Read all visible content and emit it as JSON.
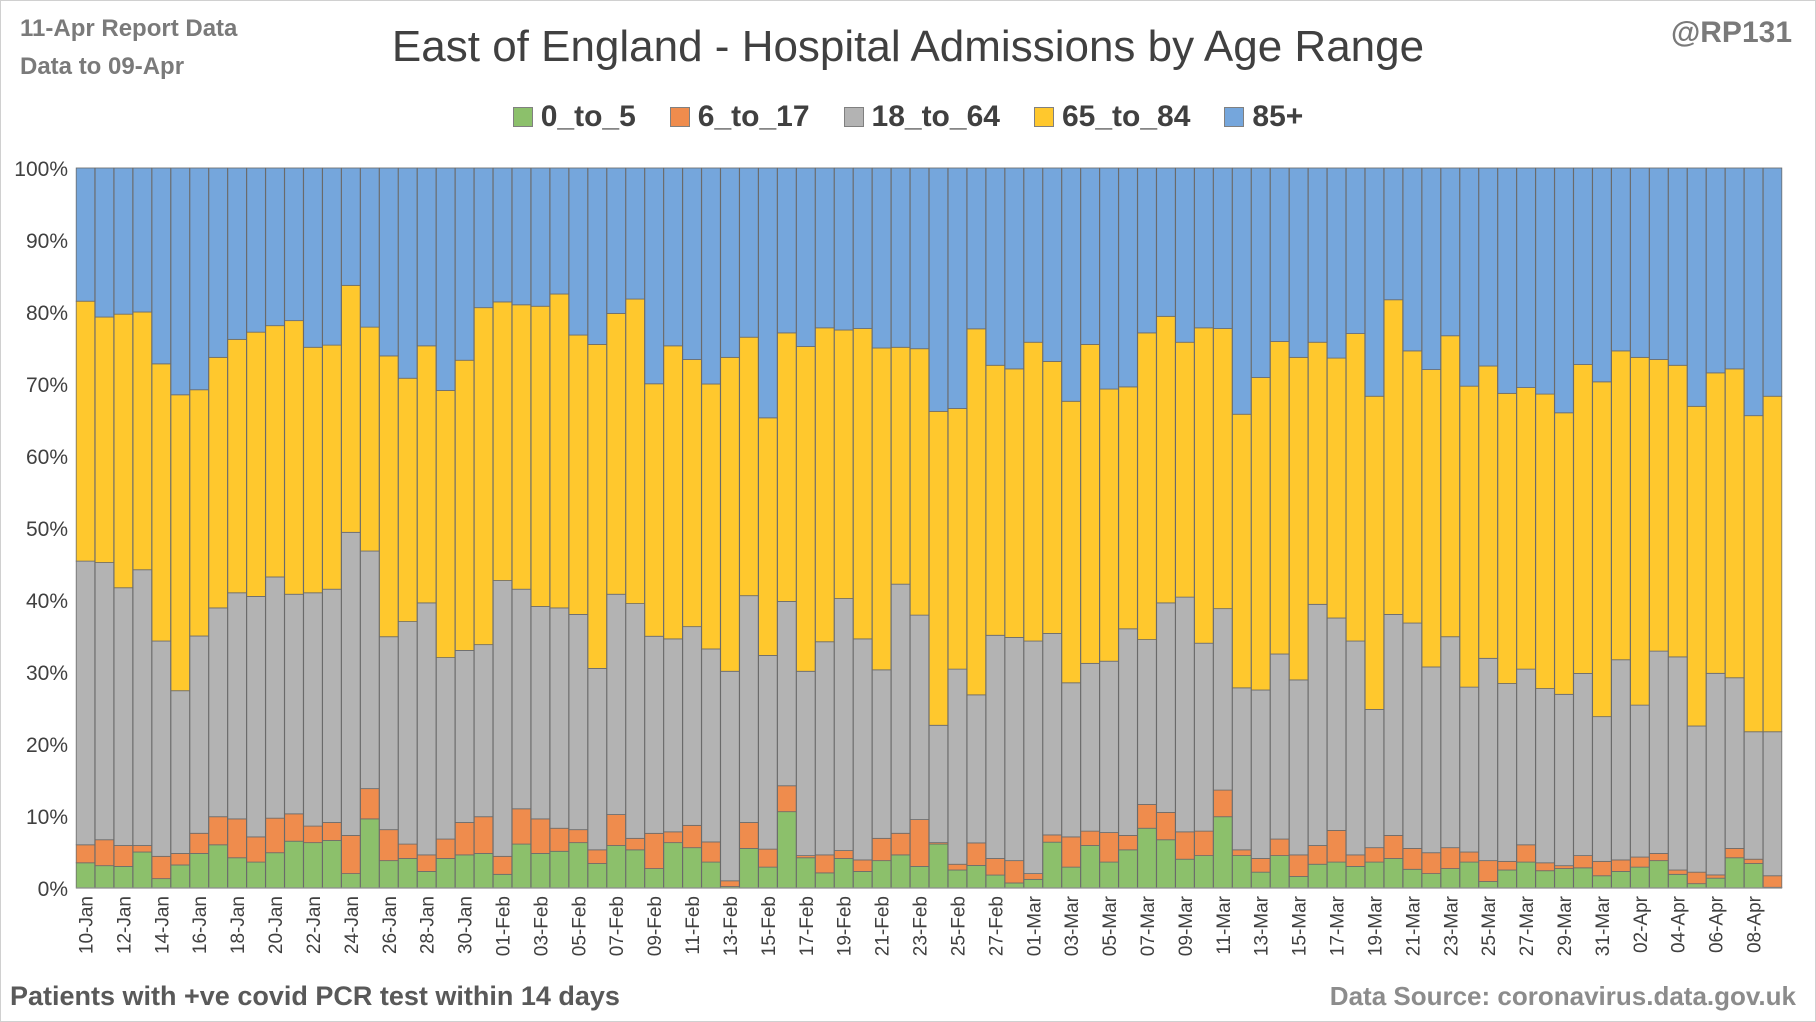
{
  "header": {
    "report_line1": "11-Apr Report Data",
    "report_line2": "Data to 09-Apr",
    "handle": "@RP131",
    "title": "East of England - Hospital Admissions by Age Range"
  },
  "footer": {
    "note": "Patients with  +ve covid PCR test within 14 days",
    "source": "Data Source: coronavirus.data.gov.uk"
  },
  "chart_data": {
    "type": "bar",
    "stacked": "percent",
    "title": "East of England - Hospital Admissions by Age Range",
    "legend_position": "top",
    "ylim": [
      0,
      100
    ],
    "yticks": [
      "0%",
      "10%",
      "20%",
      "30%",
      "40%",
      "50%",
      "60%",
      "70%",
      "80%",
      "90%",
      "100%"
    ],
    "grid": true,
    "categories": [
      "10-Jan",
      "11-Jan",
      "12-Jan",
      "13-Jan",
      "14-Jan",
      "15-Jan",
      "16-Jan",
      "17-Jan",
      "18-Jan",
      "19-Jan",
      "20-Jan",
      "21-Jan",
      "22-Jan",
      "23-Jan",
      "24-Jan",
      "25-Jan",
      "26-Jan",
      "27-Jan",
      "28-Jan",
      "29-Jan",
      "30-Jan",
      "31-Jan",
      "01-Feb",
      "02-Feb",
      "03-Feb",
      "04-Feb",
      "05-Feb",
      "06-Feb",
      "07-Feb",
      "08-Feb",
      "09-Feb",
      "10-Feb",
      "11-Feb",
      "12-Feb",
      "13-Feb",
      "14-Feb",
      "15-Feb",
      "16-Feb",
      "17-Feb",
      "18-Feb",
      "19-Feb",
      "20-Feb",
      "21-Feb",
      "22-Feb",
      "23-Feb",
      "24-Feb",
      "25-Feb",
      "26-Feb",
      "27-Feb",
      "28-Feb",
      "01-Mar",
      "02-Mar",
      "03-Mar",
      "04-Mar",
      "05-Mar",
      "06-Mar",
      "07-Mar",
      "08-Mar",
      "09-Mar",
      "10-Mar",
      "11-Mar",
      "12-Mar",
      "13-Mar",
      "14-Mar",
      "15-Mar",
      "16-Mar",
      "17-Mar",
      "18-Mar",
      "19-Mar",
      "20-Mar",
      "21-Mar",
      "22-Mar",
      "23-Mar",
      "24-Mar",
      "25-Mar",
      "26-Mar",
      "27-Mar",
      "28-Mar",
      "29-Mar",
      "30-Mar",
      "31-Mar",
      "01-Apr",
      "02-Apr",
      "03-Apr",
      "04-Apr",
      "05-Apr",
      "06-Apr",
      "07-Apr",
      "08-Apr",
      "09-Apr"
    ],
    "tick_labels": [
      "10-Jan",
      "12-Jan",
      "14-Jan",
      "16-Jan",
      "18-Jan",
      "20-Jan",
      "22-Jan",
      "24-Jan",
      "26-Jan",
      "28-Jan",
      "30-Jan",
      "01-Feb",
      "03-Feb",
      "05-Feb",
      "07-Feb",
      "09-Feb",
      "11-Feb",
      "13-Feb",
      "15-Feb",
      "17-Feb",
      "19-Feb",
      "21-Feb",
      "23-Feb",
      "25-Feb",
      "27-Feb",
      "01-Mar",
      "03-Mar",
      "05-Mar",
      "07-Mar",
      "09-Mar",
      "11-Mar",
      "13-Mar",
      "15-Mar",
      "17-Mar",
      "19-Mar",
      "21-Mar",
      "23-Mar",
      "25-Mar",
      "27-Mar",
      "29-Mar",
      "31-Mar",
      "02-Apr",
      "04-Apr",
      "06-Apr",
      "08-Apr"
    ],
    "series": [
      {
        "name": "0_to_5",
        "color": "#8cc06b",
        "values": [
          3.5,
          3.1,
          3.0,
          5.0,
          1.3,
          3.2,
          4.8,
          6.0,
          4.2,
          3.6,
          4.9,
          6.5,
          6.3,
          6.6,
          2.0,
          9.6,
          3.8,
          4.1,
          2.3,
          4.1,
          4.6,
          4.8,
          1.9,
          6.1,
          4.8,
          5.1,
          6.3,
          3.4,
          5.9,
          5.3,
          2.7,
          6.3,
          5.6,
          3.6,
          0.2,
          5.5,
          2.9,
          10.6,
          4.2,
          2.1,
          4.1,
          2.3,
          3.8,
          4.6,
          3.0,
          6.1,
          2.5,
          3.0,
          1.8,
          0.7,
          1.2,
          6.3,
          2.9,
          5.9,
          3.6,
          5.3,
          8.3,
          6.7,
          4.0,
          4.5,
          9.9,
          4.5,
          2.2,
          4.5,
          1.6,
          3.3,
          3.6,
          3.0,
          3.6,
          4.1,
          2.6,
          2.0,
          2.7,
          3.6,
          0.9,
          2.5,
          3.6,
          2.4,
          2.7,
          2.8,
          1.7,
          2.3,
          2.9,
          3.8,
          1.9,
          0.6,
          1.5,
          4.2,
          3.4,
          0.1
        ]
      },
      {
        "name": "6_to_17",
        "color": "#ef8c4d",
        "values": [
          2.5,
          3.6,
          2.9,
          0.9,
          3.1,
          1.6,
          2.8,
          3.9,
          5.4,
          3.5,
          4.8,
          3.8,
          2.3,
          2.5,
          5.3,
          4.2,
          4.3,
          2.0,
          2.3,
          2.7,
          4.5,
          5.1,
          2.5,
          4.9,
          4.8,
          3.2,
          1.8,
          1.9,
          4.3,
          1.6,
          4.9,
          1.5,
          3.1,
          2.8,
          0.8,
          3.6,
          2.5,
          3.6,
          0.3,
          2.5,
          1.1,
          1.6,
          3.1,
          3.0,
          6.5,
          0.2,
          0.8,
          3.0,
          2.3,
          3.1,
          0.8,
          1.0,
          4.2,
          2.0,
          4.1,
          2.0,
          3.3,
          3.8,
          3.8,
          3.4,
          3.7,
          0.8,
          1.9,
          2.3,
          3.0,
          2.6,
          4.4,
          1.6,
          2.0,
          3.2,
          2.9,
          2.9,
          2.9,
          1.4,
          2.9,
          1.2,
          2.4,
          1.1,
          0.4,
          1.7,
          2.0,
          1.6,
          1.4,
          1.0,
          0.6,
          1.6,
          0.5,
          1.3,
          0.6,
          1.6
        ]
      },
      {
        "name": "18_to_64",
        "color": "#b3b3b3",
        "values": [
          39.4,
          38.5,
          35.8,
          38.3,
          29.9,
          22.6,
          27.4,
          29.0,
          31.4,
          33.4,
          33.5,
          30.5,
          32.4,
          32.4,
          42.1,
          33.0,
          26.8,
          30.9,
          35.0,
          25.2,
          23.9,
          23.9,
          38.3,
          30.5,
          29.5,
          30.6,
          29.9,
          25.2,
          30.6,
          32.6,
          27.4,
          26.8,
          27.6,
          26.8,
          29.1,
          31.5,
          26.9,
          25.6,
          25.6,
          29.6,
          35.0,
          30.7,
          23.4,
          34.6,
          28.4,
          16.3,
          27.1,
          19.7,
          31.0,
          31.0,
          32.3,
          27.7,
          21.4,
          23.3,
          23.8,
          28.7,
          22.9,
          29.1,
          32.6,
          26.1,
          25.2,
          22.5,
          23.4,
          25.7,
          24.3,
          33.5,
          29.5,
          29.7,
          19.2,
          30.7,
          31.3,
          25.8,
          29.3,
          22.9,
          28.1,
          24.7,
          24.4,
          24.2,
          23.8,
          25.3,
          20.1,
          27.8,
          21.1,
          28.1,
          29.6,
          20.3,
          30.8,
          23.7,
          17.7,
          20.0
        ]
      },
      {
        "name": "65_to_84",
        "color": "#ffc82d",
        "values": [
          36.1,
          34.1,
          38.0,
          35.8,
          38.5,
          41.1,
          34.2,
          34.8,
          35.2,
          36.7,
          34.9,
          38.0,
          34.1,
          33.9,
          34.3,
          31.1,
          39.0,
          33.8,
          35.7,
          37.1,
          40.3,
          46.8,
          38.7,
          39.5,
          41.7,
          43.6,
          38.8,
          45.0,
          39.0,
          42.3,
          35.1,
          40.7,
          37.1,
          36.8,
          43.6,
          35.9,
          33.0,
          37.3,
          45.1,
          43.6,
          37.3,
          43.1,
          44.7,
          32.9,
          37.0,
          43.6,
          36.2,
          48.7,
          37.5,
          37.3,
          41.5,
          37.4,
          39.1,
          44.3,
          37.8,
          33.6,
          42.6,
          39.8,
          35.4,
          43.8,
          38.9,
          38.0,
          43.4,
          43.4,
          44.8,
          36.4,
          36.1,
          42.7,
          43.5,
          43.7,
          37.8,
          41.3,
          41.8,
          41.8,
          40.6,
          40.3,
          39.1,
          40.9,
          39.1,
          42.9,
          46.5,
          42.9,
          48.3,
          40.5,
          40.5,
          44.4,
          45.9,
          42.9,
          43.9,
          46.6
        ]
      },
      {
        "name": "85+",
        "color": "#75a6dc",
        "values": [
          18.5,
          20.7,
          20.3,
          20.0,
          27.2,
          31.5,
          30.8,
          26.3,
          23.8,
          22.8,
          21.9,
          21.2,
          24.9,
          24.6,
          16.3,
          22.1,
          26.1,
          29.2,
          24.7,
          30.9,
          26.7,
          19.4,
          18.6,
          19.0,
          19.2,
          17.5,
          23.2,
          24.5,
          20.2,
          18.2,
          30.0,
          24.7,
          26.6,
          30.0,
          26.3,
          23.5,
          34.7,
          22.9,
          24.8,
          22.2,
          22.5,
          22.3,
          25.0,
          24.9,
          25.1,
          33.8,
          33.4,
          21.4,
          27.4,
          27.9,
          24.2,
          26.6,
          32.4,
          24.5,
          30.7,
          30.4,
          22.9,
          20.6,
          24.2,
          22.2,
          22.3,
          34.2,
          29.1,
          24.1,
          26.3,
          24.2,
          26.4,
          23.0,
          31.7,
          18.3,
          25.4,
          28.0,
          23.3,
          30.3,
          27.5,
          31.3,
          30.5,
          31.4,
          34.0,
          27.3,
          29.7,
          25.4,
          26.3,
          26.6,
          27.4,
          33.1,
          31.3,
          27.9,
          34.4,
          31.7
        ]
      }
    ]
  }
}
